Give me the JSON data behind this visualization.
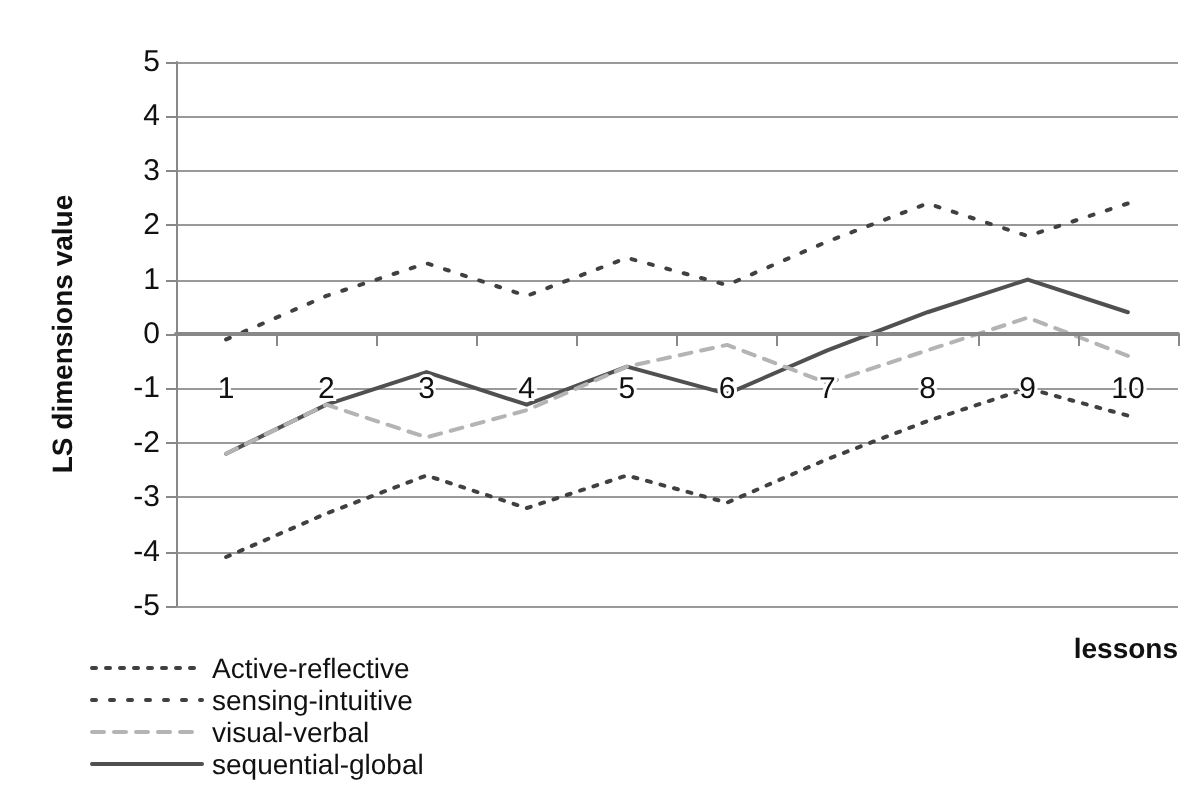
{
  "chart_data": {
    "type": "line",
    "xlabel": "lessons",
    "ylabel": "LS dimensions value",
    "categories": [
      "1",
      "2",
      "3",
      "4",
      "5",
      "6",
      "7",
      "8",
      "9",
      "10"
    ],
    "ylim": [
      -5,
      5
    ],
    "yticks": [
      -5,
      -4,
      -3,
      -2,
      -1,
      0,
      1,
      2,
      3,
      4,
      5
    ],
    "grid": "y",
    "legend": "bottom left",
    "marker": "none",
    "series": [
      {
        "name": "Active-reflective",
        "color": "#404040",
        "line_style": "dotted",
        "values": [
          -4.1,
          -3.3,
          -2.6,
          -3.2,
          -2.6,
          -3.1,
          -2.3,
          -1.6,
          -1.0,
          -1.5
        ]
      },
      {
        "name": "sensing-intuitive",
        "color": "#404040",
        "line_style": "dashed",
        "values": [
          -0.1,
          0.7,
          1.3,
          0.7,
          1.4,
          0.9,
          1.7,
          2.4,
          1.8,
          2.4
        ]
      },
      {
        "name": "visual-verbal",
        "color": "#b4b4b4",
        "line_style": "dashed",
        "values": [
          -2.2,
          -1.3,
          -1.9,
          -1.4,
          -0.6,
          -0.2,
          -0.9,
          -0.3,
          0.3,
          -0.4
        ]
      },
      {
        "name": "sequential-global",
        "color": "#505050",
        "line_style": "solid",
        "values": [
          -2.2,
          -1.3,
          -0.7,
          -1.3,
          -0.6,
          -1.1,
          -0.3,
          0.4,
          1.0,
          0.4
        ]
      }
    ]
  }
}
